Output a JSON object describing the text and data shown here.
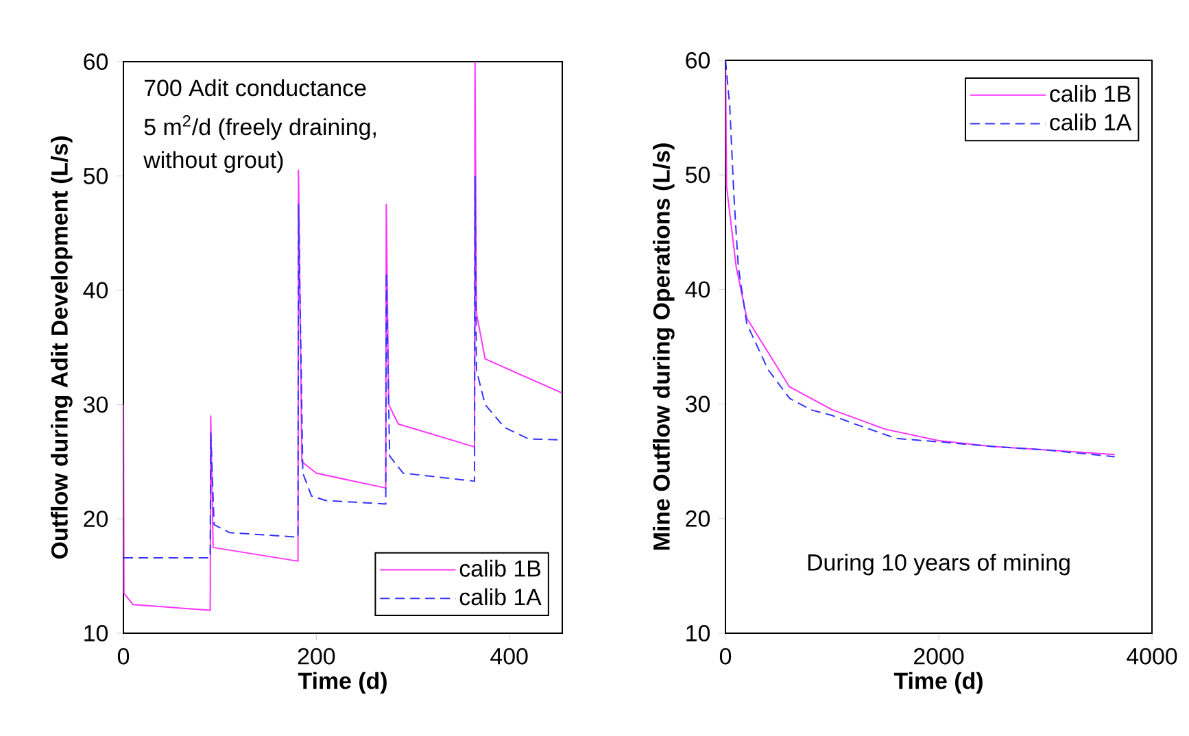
{
  "chart_data": [
    {
      "type": "line",
      "xlabel": "Time (d)",
      "ylabel": "Outflow during Adit Development (L/s)",
      "xlim": [
        0,
        455
      ],
      "ylim": [
        10,
        60
      ],
      "xticks": [
        0,
        200,
        400
      ],
      "yticks": [
        10,
        20,
        30,
        40,
        50,
        60
      ],
      "legend": "bottom right",
      "annotations": [
        "700 Adit conductance",
        "5 m$^{2}$/d (freely draining,",
        "without grout)"
      ],
      "series": [
        {
          "name": "calib 1B",
          "color": "#ff33ff",
          "line_style": "solid",
          "x": [
            0,
            0.5,
            10,
            90,
            90.5,
            93,
            181,
            181.5,
            185,
            200,
            272,
            272.5,
            275,
            285,
            364,
            364.5,
            366,
            375,
            455
          ],
          "values": [
            30,
            13.5,
            12.5,
            12,
            29,
            17.5,
            16.3,
            50.5,
            25,
            24,
            22.7,
            47.5,
            30,
            28.3,
            26.3,
            60,
            38,
            34,
            31
          ]
        },
        {
          "name": "calib 1A",
          "color": "#3333ff",
          "line_style": "dashed",
          "x": [
            0,
            90,
            90.5,
            94,
            110,
            181,
            181.5,
            186,
            195,
            210,
            272,
            272.5,
            276,
            290,
            364,
            364.5,
            366,
            375,
            395,
            420,
            455
          ],
          "values": [
            16.6,
            16.6,
            27.5,
            19.5,
            18.8,
            18.4,
            47.5,
            24,
            22,
            21.6,
            21.3,
            41.5,
            25.5,
            24,
            23.3,
            50,
            33,
            30,
            28,
            27,
            26.9
          ]
        }
      ]
    },
    {
      "type": "line",
      "xlabel": "Time (d)",
      "ylabel": "Mine Outflow during Operations (L/s)",
      "xlim": [
        0,
        4000
      ],
      "ylim": [
        10,
        60
      ],
      "xticks": [
        0,
        2000,
        4000
      ],
      "yticks": [
        10,
        20,
        30,
        40,
        50,
        60
      ],
      "legend": "top right",
      "annotations": [
        "During 10 years of mining"
      ],
      "series": [
        {
          "name": "calib 1B",
          "color": "#ff33ff",
          "line_style": "solid",
          "x": [
            0,
            10,
            100,
            200,
            400,
            600,
            1000,
            1500,
            2000,
            2500,
            3000,
            3650
          ],
          "values": [
            60,
            49,
            42,
            37.5,
            34.5,
            31.5,
            29.5,
            27.8,
            26.8,
            26.3,
            26,
            25.6
          ]
        },
        {
          "name": "calib 1A",
          "color": "#3333ff",
          "line_style": "dashed",
          "x": [
            0,
            40,
            80,
            120,
            200,
            400,
            600,
            800,
            1000,
            1200,
            1600,
            2000,
            2500,
            3000,
            3650
          ],
          "values": [
            60,
            56,
            48,
            42,
            37,
            33,
            30.5,
            29.5,
            29,
            28.3,
            27,
            26.7,
            26.3,
            26,
            25.4
          ]
        }
      ]
    }
  ]
}
